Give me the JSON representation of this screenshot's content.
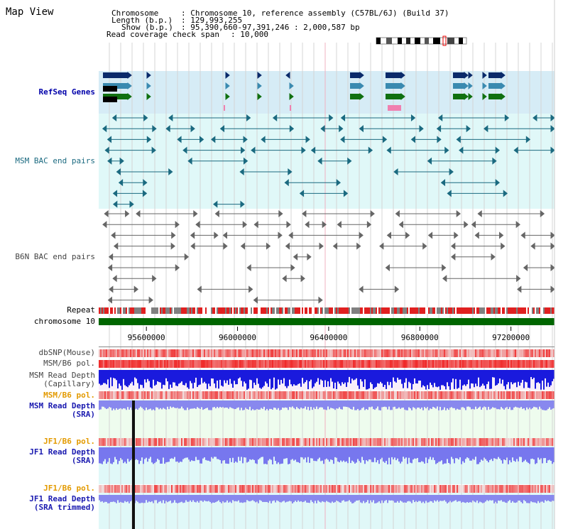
{
  "title": "Map View",
  "header": {
    "chromosome_label": "Chromosome",
    "chromosome_value": ": Chromosome 10, reference assembly (C57BL/6J) (Build 37)",
    "length_label": "Length (b.p.)",
    "length_value": ": 129,993,255",
    "show_label": "Show (b.p.)",
    "show_value": ": 95,390,660-97,391,246 : 2,000,587 bp",
    "coverage_label": "Read coverage check span",
    "coverage_value": ": 10,000"
  },
  "tracks": {
    "refseq": "RefSeq Genes",
    "msm_bac": "MSM BAC end pairs",
    "b6n_bac": "B6N BAC end pairs",
    "repeat": "Repeat",
    "chromosome": "chromosome 10",
    "dbsnp": "dbSNP(Mouse)",
    "msm_b6_pol_1": "MSM/B6 pol.",
    "msm_read_depth_cap_1": "MSM Read Depth",
    "msm_read_depth_cap_2": "(Capillary)",
    "msm_b6_pol_2": "MSM/B6 pol.",
    "msm_read_depth_sra_1": "MSM Read Depth",
    "msm_read_depth_sra_2": "(SRA)",
    "jf1_b6_pol_1": "JF1/B6 pol.",
    "jf1_read_depth_sra_1": "JF1 Read Depth",
    "jf1_read_depth_sra_2": "(SRA)",
    "jf1_b6_pol_2": "JF1/B6 pol.",
    "jf1_read_depth_trim_1": "JF1 Read Depth",
    "jf1_read_depth_trim_2": "(SRA trimmed)"
  },
  "axis": {
    "ticks": [
      "95600000",
      "96000000",
      "96400000",
      "96800000",
      "97200000"
    ],
    "tick_positions_bp": [
      95600000,
      96000000,
      96400000,
      96800000,
      97200000
    ],
    "start_bp": 95390660,
    "end_bp": 97391246
  },
  "colors": {
    "refseq_bg": "#d6ecf6",
    "bac_msm_bg": "#e0f8f8",
    "msm_color": "#1b6a80",
    "b6n_color": "#666666",
    "chromosome_bar": "#006600",
    "repeat_red": "#e02020",
    "repeat_gray": "#808080",
    "depth_blue": "#0000cc",
    "depth_light_blue": "#7777ee"
  }
}
